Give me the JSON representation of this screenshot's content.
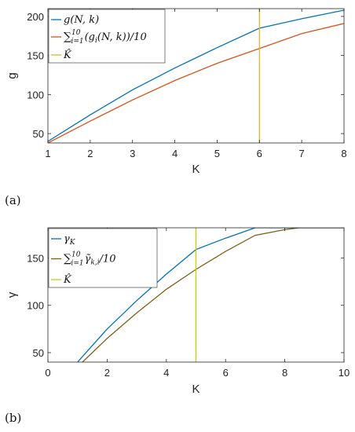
{
  "chart_data": [
    {
      "type": "line",
      "panel_label": "(a)",
      "xlabel": "K",
      "ylabel": "g",
      "xlim": [
        1,
        8
      ],
      "ylim": [
        38,
        210
      ],
      "xticks": [
        1,
        2,
        3,
        4,
        5,
        6,
        7,
        8
      ],
      "yticks": [
        50,
        100,
        150,
        200
      ],
      "grid": false,
      "legend_position": "top-left",
      "series": [
        {
          "name": "g(N,k)",
          "color": "#0072BD",
          "x": [
            1,
            2,
            3,
            4,
            5,
            6,
            7,
            8
          ],
          "y": [
            40,
            74,
            106,
            134,
            160,
            185,
            197,
            208
          ]
        },
        {
          "name": "Σ_{i=1}^{10}(g_i(N,k))/10",
          "color": "#D95319",
          "x": [
            1,
            2,
            3,
            4,
            5,
            6,
            7,
            8
          ],
          "y": [
            38,
            66,
            93,
            118,
            140,
            159,
            178,
            191
          ]
        },
        {
          "name": "K̂",
          "color": "#EDB120",
          "vline": 6
        }
      ],
      "legend": [
        {
          "main": "g(N, k)"
        },
        {
          "pre": "∑",
          "sub": "i=1",
          "sup": "10",
          "main": "(g",
          "sub2": "i",
          "post": "(N, k))/10"
        },
        {
          "main": "K̂"
        }
      ]
    },
    {
      "type": "line",
      "panel_label": "(b)",
      "xlabel": "K",
      "ylabel": "γ",
      "xlim": [
        0,
        10
      ],
      "ylim": [
        40,
        182
      ],
      "xticks": [
        0,
        2,
        4,
        6,
        8,
        10
      ],
      "yticks": [
        50,
        100,
        150
      ],
      "grid": false,
      "legend_position": "top-left",
      "series": [
        {
          "name": "γ_K",
          "color": "#0072BD",
          "x": [
            1,
            2,
            3,
            4,
            5,
            6,
            7,
            8,
            9,
            10
          ],
          "y": [
            40,
            75,
            105,
            133,
            159,
            171,
            182,
            182,
            182,
            182
          ]
        },
        {
          "name": "Σ_{i=1}^{10} γ̃_{k,i}/10",
          "color": "#7E5F16",
          "x": [
            1,
            2,
            3,
            4,
            5,
            6,
            7,
            8,
            8.5,
            9,
            10
          ],
          "y": [
            35,
            65,
            92,
            117,
            138,
            157,
            174,
            180,
            182,
            182,
            182
          ]
        },
        {
          "name": "K̂",
          "color": "#C8C81A",
          "vline": 5
        }
      ],
      "legend": [
        {
          "main": "γ",
          "sub": "K"
        },
        {
          "pre": "∑",
          "sub": "i=1",
          "sup": "10",
          "main": "γ̃",
          "sub2": "k,i",
          "post": "/10"
        },
        {
          "main": "K̂"
        }
      ]
    }
  ]
}
